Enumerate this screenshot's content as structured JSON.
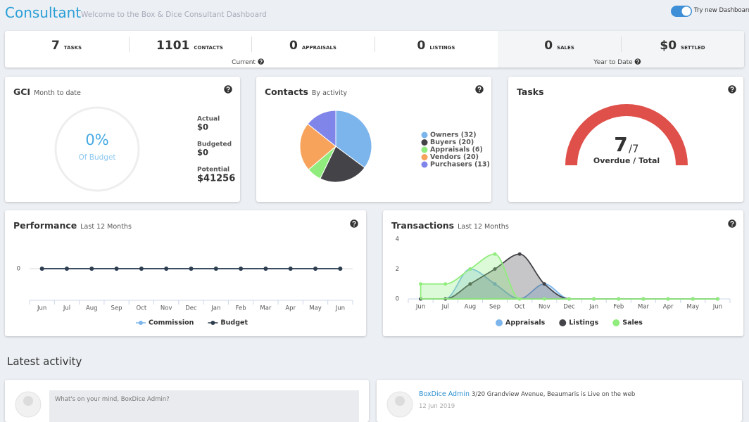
{
  "header": {
    "title": "Consultant",
    "subtitle": "Welcome to the Box & Dice Consultant Dashboard",
    "toggle_label": "Try new Dashboard"
  },
  "stats": {
    "current": [
      {
        "value": "7",
        "label": "tasks"
      },
      {
        "value": "1101",
        "label": "contacts"
      },
      {
        "value": "0",
        "label": "appraisals"
      },
      {
        "value": "0",
        "label": "listings"
      }
    ],
    "current_label": "Current",
    "year_to_date": [
      {
        "value": "0",
        "label": "sales"
      },
      {
        "value": "$0",
        "label": "settled"
      }
    ],
    "year_to_date_label": "Year to Date"
  },
  "gci": {
    "title": "GCI",
    "subtitle": "Month to date",
    "gauge_value": "0%",
    "gauge_label": "Of Budget",
    "items": [
      {
        "label": "Actual",
        "value": "$0"
      },
      {
        "label": "Budgeted",
        "value": "$0"
      },
      {
        "label": "Potential",
        "value": "$41256"
      }
    ]
  },
  "tasks": {
    "title": "Tasks",
    "overdue": 7,
    "total": {
      "value": 7,
      "label": "/7"
    },
    "label": "Overdue / Total"
  },
  "chart_data": [
    {
      "type": "pie",
      "title": "Contacts",
      "subtitle": "By activity",
      "categories": [
        "Owners (32)",
        "Buyers (20)",
        "Appraisals (6)",
        "Vendors (20)",
        "Purchasers (13)"
      ],
      "values": [
        32,
        20,
        6,
        20,
        13
      ],
      "colors": [
        "#7cb5ec",
        "#434348",
        "#90ed7d",
        "#f7a35c",
        "#8085e9"
      ]
    },
    {
      "type": "line",
      "title": "Performance",
      "subtitle": "Last 12 Months",
      "categories": [
        "Jun",
        "Jul",
        "Aug",
        "Sep",
        "Oct",
        "Nov",
        "Dec",
        "Jan",
        "Feb",
        "Mar",
        "Apr",
        "May",
        "Jun"
      ],
      "series": [
        {
          "name": "Commission",
          "color": "#7cb5ec",
          "values": [
            0,
            0,
            0,
            0,
            0,
            0,
            0,
            0,
            0,
            0,
            0,
            0,
            0
          ]
        },
        {
          "name": "Budget",
          "color": "#2f3e4e",
          "values": [
            0,
            0,
            0,
            0,
            0,
            0,
            0,
            0,
            0,
            0,
            0,
            0,
            0
          ]
        }
      ],
      "ylim": [
        -1,
        1
      ],
      "yticks": [
        0
      ],
      "grid": true
    },
    {
      "type": "area",
      "title": "Transactions",
      "subtitle": "Last 12 Months",
      "categories": [
        "Jun",
        "Jul",
        "Aug",
        "Sep",
        "Oct",
        "Nov",
        "Dec",
        "Jan",
        "Feb",
        "Mar",
        "Apr",
        "May",
        "Jun"
      ],
      "series": [
        {
          "name": "Appraisals",
          "color": "#7cb5ec",
          "values": [
            0,
            0,
            2,
            1,
            0,
            1,
            0,
            0,
            0,
            0,
            0,
            0,
            0
          ]
        },
        {
          "name": "Listings",
          "color": "#434348",
          "values": [
            0,
            0,
            1,
            2,
            3,
            1,
            0,
            0,
            0,
            0,
            0,
            0,
            0
          ]
        },
        {
          "name": "Sales",
          "color": "#90ed7d",
          "values": [
            1,
            1,
            2,
            3,
            0,
            0,
            0,
            0,
            0,
            0,
            0,
            0,
            0
          ]
        }
      ],
      "ylim": [
        0,
        4
      ],
      "yticks": [
        0,
        2,
        4
      ],
      "grid": false
    }
  ],
  "activity": {
    "title": "Latest activity",
    "post_placeholder": "What's on your mind, BoxDice Admin?",
    "items": [
      {
        "user": "BoxDice Admin",
        "text": "3/20 Grandview Avenue, Beaumaris is Live on the web",
        "date": "12 Jun 2019"
      }
    ]
  }
}
